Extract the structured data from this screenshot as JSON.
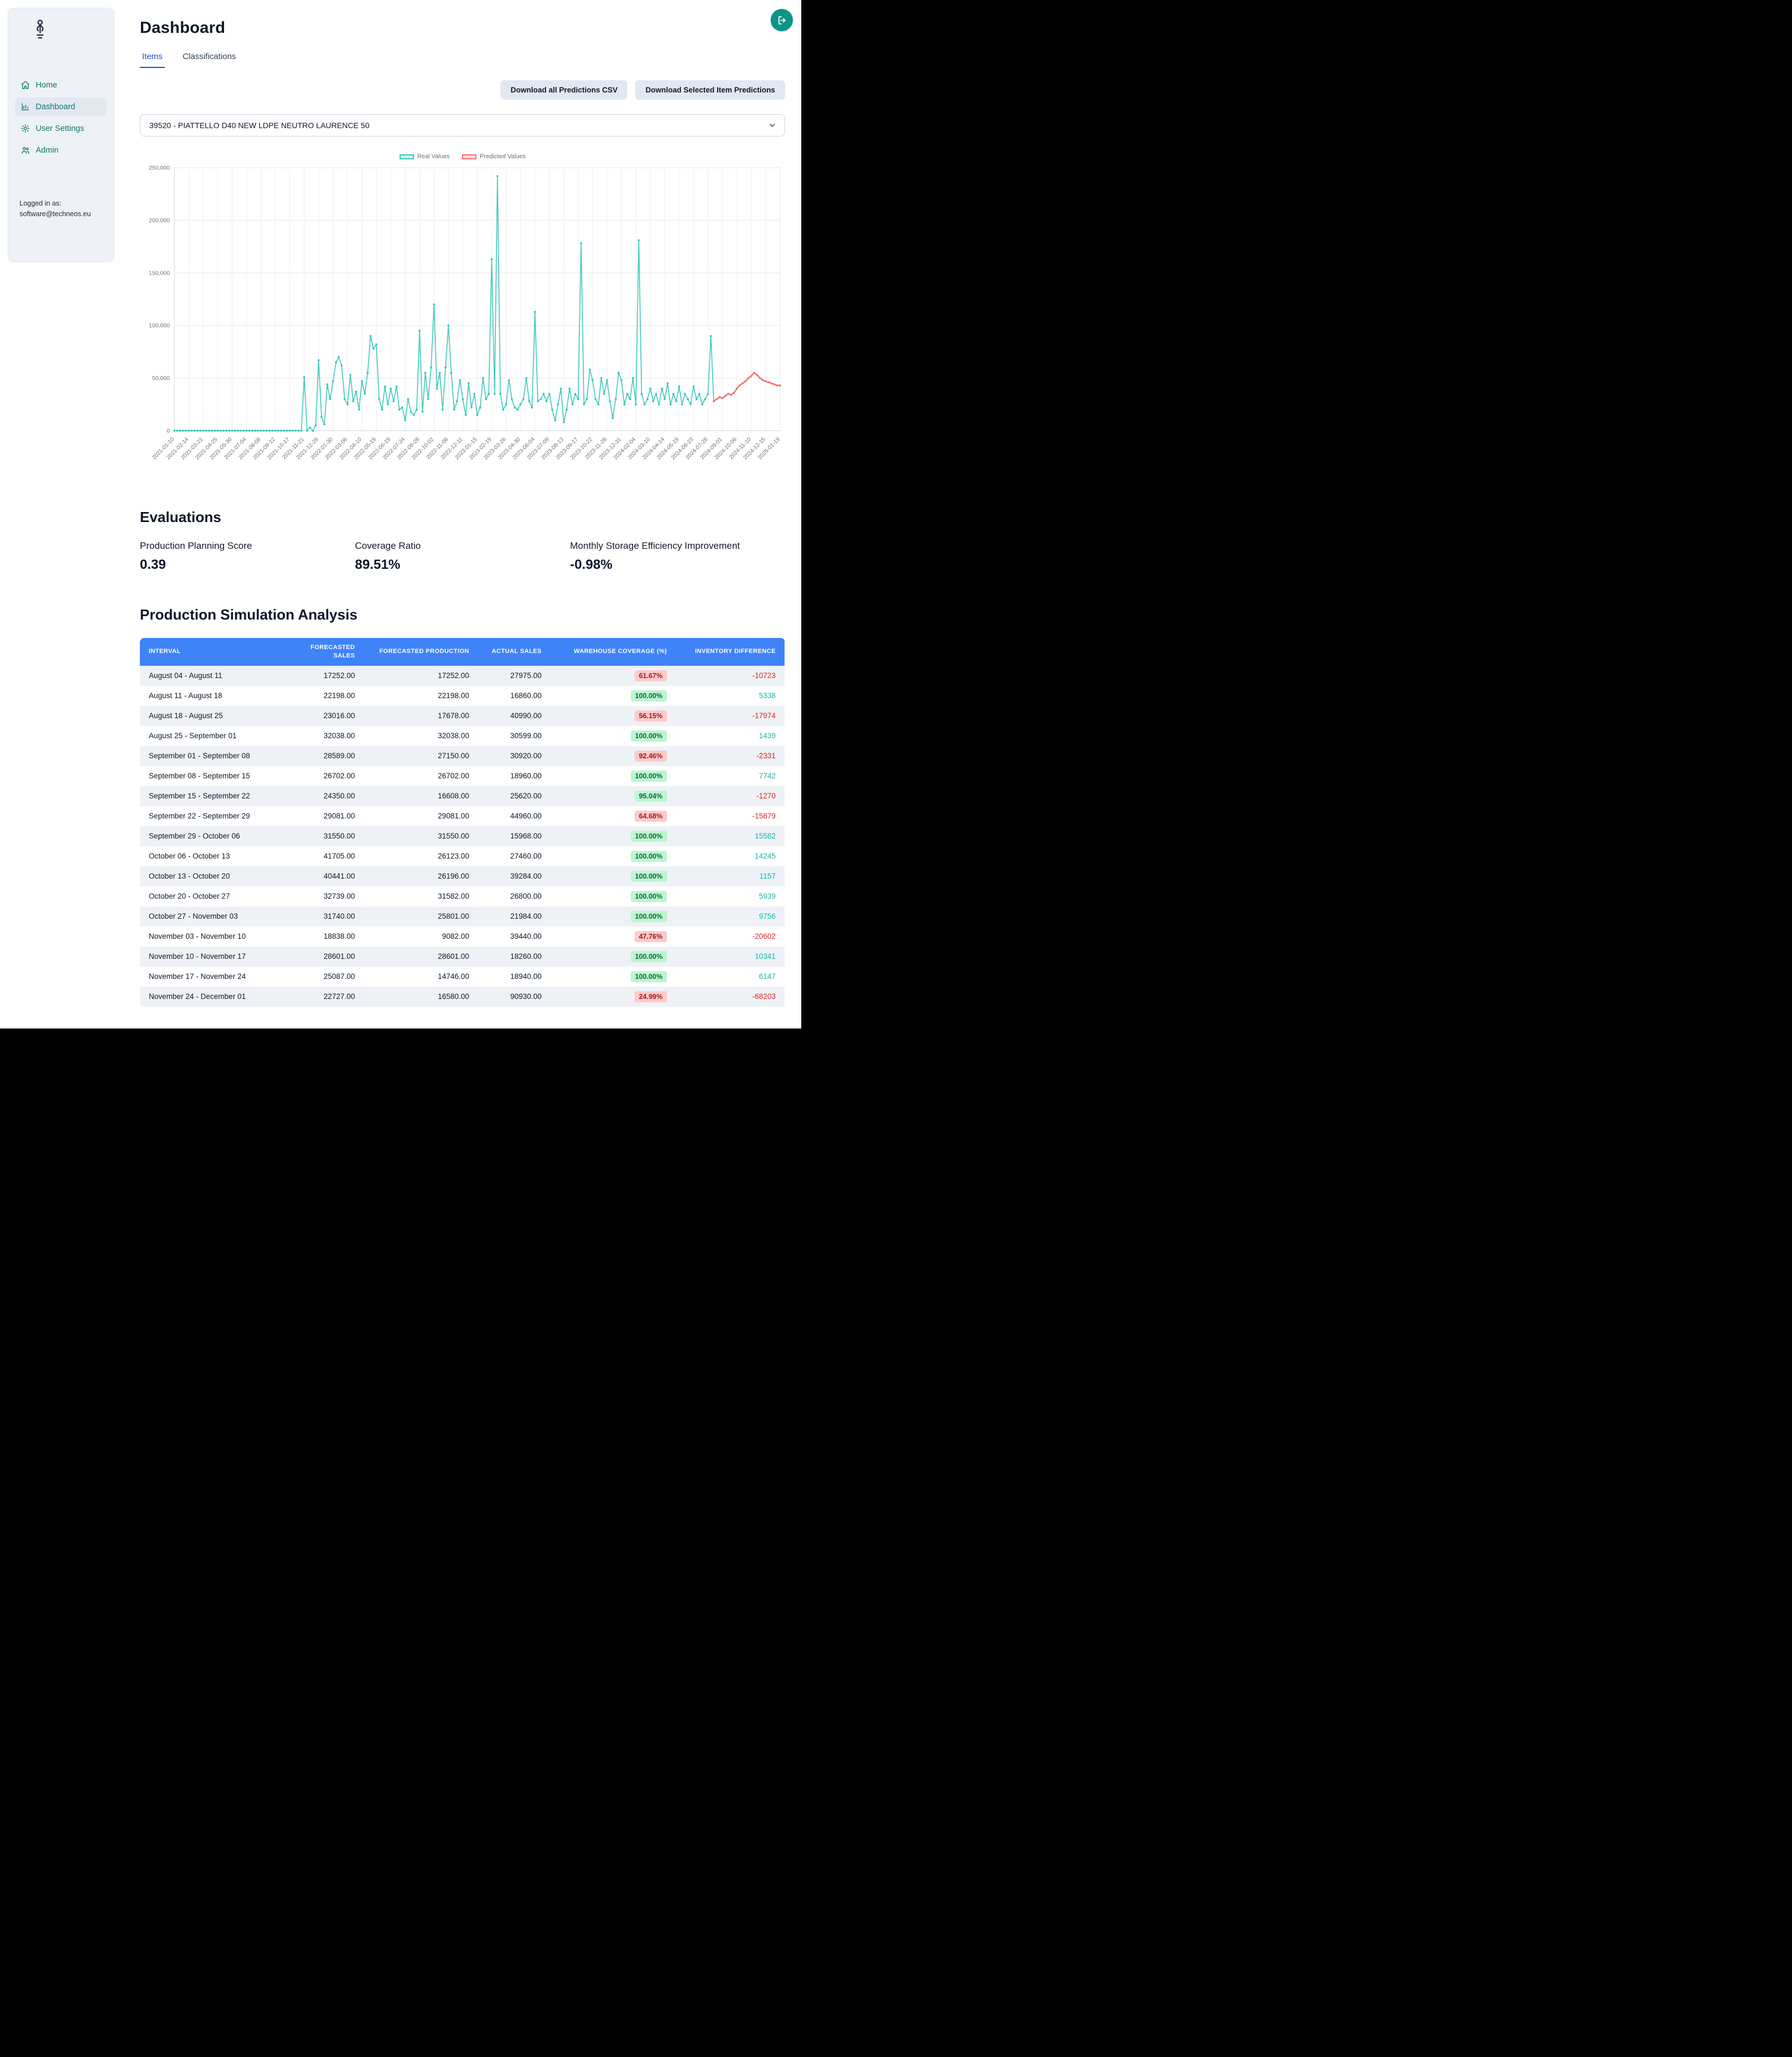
{
  "sidebar": {
    "nav": [
      {
        "label": "Home"
      },
      {
        "label": "Dashboard"
      },
      {
        "label": "User Settings"
      },
      {
        "label": "Admin"
      }
    ],
    "logged_in_label": "Logged in as:",
    "logged_in_email": "software@techneos.eu"
  },
  "header": {
    "title": "Dashboard",
    "tabs": [
      {
        "label": "Items"
      },
      {
        "label": "Classifications"
      }
    ]
  },
  "toolbar": {
    "download_all": "Download all Predictions CSV",
    "download_selected": "Download Selected Item Predictions"
  },
  "item_select": {
    "value": "39520 - PIATTELLO D40 NEW LDPE NEUTRO LAURENCE 50"
  },
  "chart_data": {
    "type": "line",
    "legend": [
      "Real Values",
      "Predicted Values"
    ],
    "ylim": [
      0,
      250000
    ],
    "y_tick_values": [
      0,
      50000,
      100000,
      150000,
      200000,
      250000
    ],
    "y_tick_labels": [
      "0",
      "50,000",
      "100,000",
      "150,000",
      "200,000",
      "250,000"
    ],
    "x_start": "2021-01-10",
    "x_step_days": 7,
    "total_points": 211,
    "tick_every": 5,
    "tick_labels": [
      "2021-01-10",
      "2021-02-14",
      "2021-03-21",
      "2021-04-25",
      "2021-05-30",
      "2021-07-04",
      "2021-08-08",
      "2021-09-12",
      "2021-10-17",
      "2021-11-21",
      "2021-12-26",
      "2022-01-30",
      "2022-03-06",
      "2022-04-10",
      "2022-05-15",
      "2022-06-19",
      "2022-07-24",
      "2022-08-28",
      "2022-10-02",
      "2022-11-06",
      "2022-12-11",
      "2023-01-15",
      "2023-02-19",
      "2023-03-26",
      "2023-04-30",
      "2023-06-04",
      "2023-07-09",
      "2023-08-13",
      "2023-09-17",
      "2023-10-22",
      "2023-11-26",
      "2023-12-31",
      "2024-02-04",
      "2024-03-10",
      "2024-04-14",
      "2024-05-19",
      "2024-06-23",
      "2024-07-28",
      "2024-09-01",
      "2024-10-06",
      "2024-11-10",
      "2024-12-15",
      "2025-01-19"
    ],
    "series": [
      {
        "name": "Real Values",
        "color": "#3fc8bc",
        "width": 1.6,
        "start_index": 0,
        "values": [
          0,
          0,
          0,
          0,
          0,
          0,
          0,
          0,
          0,
          0,
          0,
          0,
          0,
          0,
          0,
          0,
          0,
          0,
          0,
          0,
          0,
          0,
          0,
          0,
          0,
          0,
          0,
          0,
          0,
          0,
          0,
          0,
          0,
          0,
          0,
          0,
          0,
          0,
          0,
          0,
          0,
          0,
          0,
          0,
          0,
          51000,
          0,
          3000,
          0,
          5000,
          67000,
          13000,
          6000,
          44000,
          30000,
          47000,
          65000,
          70000,
          62000,
          30000,
          25000,
          53000,
          28000,
          37000,
          20000,
          47000,
          35000,
          55000,
          90000,
          78000,
          82000,
          30000,
          20000,
          42000,
          25000,
          40000,
          28000,
          42000,
          20000,
          22000,
          10000,
          30000,
          18000,
          15000,
          20000,
          95000,
          18000,
          55000,
          30000,
          60000,
          120000,
          40000,
          55000,
          20000,
          60000,
          100000,
          55000,
          20000,
          28000,
          48000,
          30000,
          15000,
          45000,
          22000,
          35000,
          15000,
          22000,
          50000,
          30000,
          35000,
          163000,
          35000,
          242000,
          35000,
          20000,
          25000,
          48000,
          30000,
          22000,
          20000,
          25000,
          30000,
          50000,
          28000,
          22000,
          113000,
          28000,
          30000,
          35000,
          28000,
          35000,
          20000,
          10000,
          25000,
          40000,
          8000,
          20000,
          40000,
          25000,
          35000,
          30000,
          178000,
          25000,
          30000,
          58000,
          48000,
          30000,
          25000,
          50000,
          35000,
          48000,
          28000,
          12000,
          30000,
          55000,
          48000,
          25000,
          35000,
          30000,
          50000,
          25000,
          181000,
          35000,
          25000,
          30000,
          40000,
          28000,
          35000,
          25000,
          40000,
          30000,
          45000,
          25000,
          35000,
          28000,
          42000,
          25000,
          35000,
          30000,
          25000,
          42000,
          30000,
          35000,
          25000,
          30000,
          35000,
          90000,
          28000
        ]
      },
      {
        "name": "Predicted Values",
        "color": "#f87171",
        "width": 2.4,
        "start_index": 187,
        "values": [
          28000,
          30000,
          32000,
          31000,
          33000,
          35000,
          34000,
          36000,
          40000,
          43000,
          45000,
          47000,
          50000,
          52000,
          55000,
          53000,
          50000,
          48000,
          47000,
          46000,
          45000,
          44000,
          43000,
          43000
        ]
      }
    ]
  },
  "evaluations": {
    "title": "Evaluations",
    "metrics": [
      {
        "label": "Production Planning Score",
        "value": "0.39"
      },
      {
        "label": "Coverage Ratio",
        "value": "89.51%"
      },
      {
        "label": "Monthly Storage Efficiency Improvement",
        "value": "-0.98%"
      }
    ]
  },
  "simulation": {
    "title": "Production Simulation Analysis",
    "columns": [
      "INTERVAL",
      "FORECASTED SALES",
      "FORECASTED PRODUCTION",
      "ACTUAL SALES",
      "WAREHOUSE COVERAGE (%)",
      "INVENTORY DIFFERENCE"
    ],
    "rows": [
      {
        "interval": "August 04 - August 11",
        "forecasted_sales": "17252.00",
        "forecasted_production": "17252.00",
        "actual_sales": "27975.00",
        "coverage": "61.67%",
        "coverage_status": "bad",
        "inventory_diff": "-10723"
      },
      {
        "interval": "August 11 - August 18",
        "forecasted_sales": "22198.00",
        "forecasted_production": "22198.00",
        "actual_sales": "16860.00",
        "coverage": "100.00%",
        "coverage_status": "good",
        "inventory_diff": "5338"
      },
      {
        "interval": "August 18 - August 25",
        "forecasted_sales": "23016.00",
        "forecasted_production": "17678.00",
        "actual_sales": "40990.00",
        "coverage": "56.15%",
        "coverage_status": "bad",
        "inventory_diff": "-17974"
      },
      {
        "interval": "August 25 - September 01",
        "forecasted_sales": "32038.00",
        "forecasted_production": "32038.00",
        "actual_sales": "30599.00",
        "coverage": "100.00%",
        "coverage_status": "good",
        "inventory_diff": "1439"
      },
      {
        "interval": "September 01 - September 08",
        "forecasted_sales": "28589.00",
        "forecasted_production": "27150.00",
        "actual_sales": "30920.00",
        "coverage": "92.46%",
        "coverage_status": "bad",
        "inventory_diff": "-2331"
      },
      {
        "interval": "September 08 - September 15",
        "forecasted_sales": "26702.00",
        "forecasted_production": "26702.00",
        "actual_sales": "18960.00",
        "coverage": "100.00%",
        "coverage_status": "good",
        "inventory_diff": "7742"
      },
      {
        "interval": "September 15 - September 22",
        "forecasted_sales": "24350.00",
        "forecasted_production": "16608.00",
        "actual_sales": "25620.00",
        "coverage": "95.04%",
        "coverage_status": "good",
        "inventory_diff": "-1270"
      },
      {
        "interval": "September 22 - September 29",
        "forecasted_sales": "29081.00",
        "forecasted_production": "29081.00",
        "actual_sales": "44960.00",
        "coverage": "64.68%",
        "coverage_status": "bad",
        "inventory_diff": "-15879"
      },
      {
        "interval": "September 29 - October 06",
        "forecasted_sales": "31550.00",
        "forecasted_production": "31550.00",
        "actual_sales": "15968.00",
        "coverage": "100.00%",
        "coverage_status": "good",
        "inventory_diff": "15582"
      },
      {
        "interval": "October 06 - October 13",
        "forecasted_sales": "41705.00",
        "forecasted_production": "26123.00",
        "actual_sales": "27460.00",
        "coverage": "100.00%",
        "coverage_status": "good",
        "inventory_diff": "14245"
      },
      {
        "interval": "October 13 - October 20",
        "forecasted_sales": "40441.00",
        "forecasted_production": "26196.00",
        "actual_sales": "39284.00",
        "coverage": "100.00%",
        "coverage_status": "good",
        "inventory_diff": "1157"
      },
      {
        "interval": "October 20 - October 27",
        "forecasted_sales": "32739.00",
        "forecasted_production": "31582.00",
        "actual_sales": "26800.00",
        "coverage": "100.00%",
        "coverage_status": "good",
        "inventory_diff": "5939"
      },
      {
        "interval": "October 27 - November 03",
        "forecasted_sales": "31740.00",
        "forecasted_production": "25801.00",
        "actual_sales": "21984.00",
        "coverage": "100.00%",
        "coverage_status": "good",
        "inventory_diff": "9756"
      },
      {
        "interval": "November 03 - November 10",
        "forecasted_sales": "18838.00",
        "forecasted_production": "9082.00",
        "actual_sales": "39440.00",
        "coverage": "47.76%",
        "coverage_status": "bad",
        "inventory_diff": "-20602"
      },
      {
        "interval": "November 10 - November 17",
        "forecasted_sales": "28601.00",
        "forecasted_production": "28601.00",
        "actual_sales": "18260.00",
        "coverage": "100.00%",
        "coverage_status": "good",
        "inventory_diff": "10341"
      },
      {
        "interval": "November 17 - November 24",
        "forecasted_sales": "25087.00",
        "forecasted_production": "14746.00",
        "actual_sales": "18940.00",
        "coverage": "100.00%",
        "coverage_status": "good",
        "inventory_diff": "6147"
      },
      {
        "interval": "November 24 - December 01",
        "forecasted_sales": "22727.00",
        "forecasted_production": "16580.00",
        "actual_sales": "90930.00",
        "coverage": "24.99%",
        "coverage_status": "bad",
        "inventory_diff": "-68203"
      }
    ]
  }
}
